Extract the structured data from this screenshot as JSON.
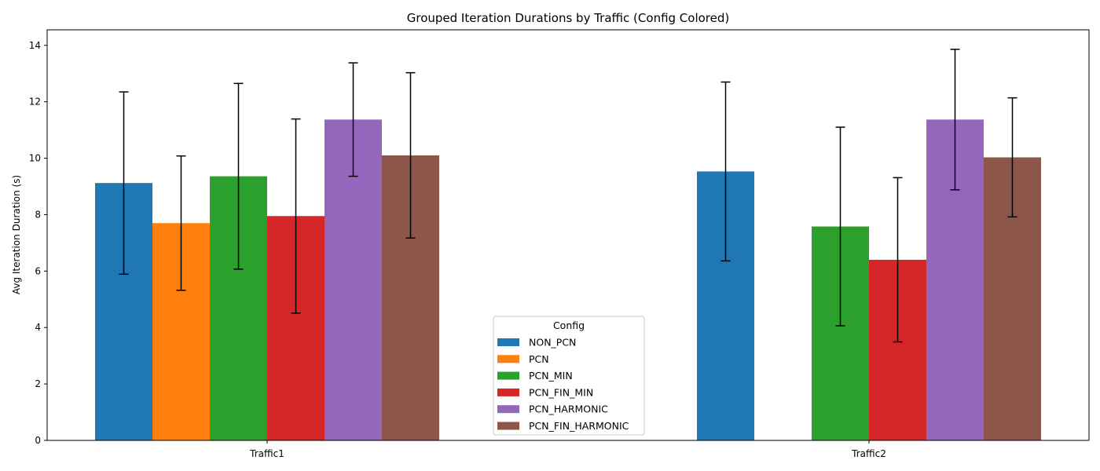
{
  "chart_data": {
    "type": "bar",
    "title": "Grouped Iteration Durations by Traffic (Config Colored)",
    "xlabel": "",
    "ylabel": "Avg Iteration Duration (s)",
    "ylim": [
      0,
      14.55
    ],
    "yticks": [
      0,
      2,
      4,
      6,
      8,
      10,
      12,
      14
    ],
    "categories": [
      "Traffic1",
      "Traffic2"
    ],
    "grid": false,
    "legend": {
      "title": "Config",
      "position": "lower-center"
    },
    "series": [
      {
        "name": "NON_PCN",
        "color": "#1f77b4",
        "values": [
          9.12,
          9.53
        ],
        "errors": [
          3.23,
          3.17
        ]
      },
      {
        "name": "PCN",
        "color": "#ff7f0e",
        "values": [
          7.7,
          null
        ],
        "errors": [
          2.38,
          null
        ]
      },
      {
        "name": "PCN_MIN",
        "color": "#2ca02c",
        "values": [
          9.36,
          7.58
        ],
        "errors": [
          3.29,
          3.52
        ]
      },
      {
        "name": "PCN_FIN_MIN",
        "color": "#d62728",
        "values": [
          7.95,
          6.4
        ],
        "errors": [
          3.44,
          2.91
        ]
      },
      {
        "name": "PCN_HARMONIC",
        "color": "#9467bd",
        "values": [
          11.37,
          11.37
        ],
        "errors": [
          2.01,
          2.49
        ]
      },
      {
        "name": "PCN_FIN_HARMONIC",
        "color": "#8c564b",
        "values": [
          10.1,
          10.03
        ],
        "errors": [
          2.93,
          2.11
        ]
      }
    ]
  }
}
